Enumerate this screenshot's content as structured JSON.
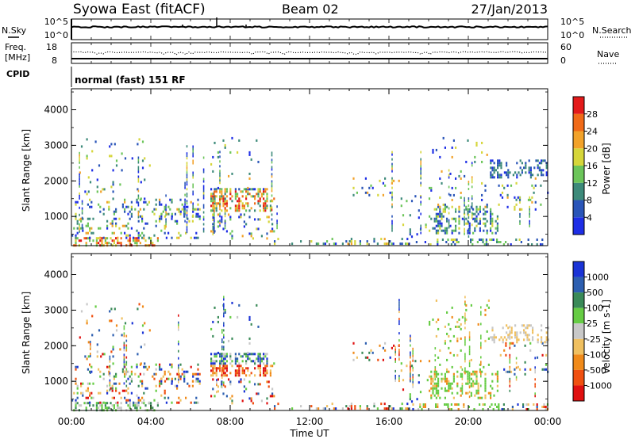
{
  "header": {
    "station": "Syowa East (fitACF)",
    "beam": "Beam 02",
    "date": "27/Jan/2013"
  },
  "nsky_panel": {
    "left_label": "N.Sky",
    "right_label": "N.Search",
    "left_top": "10^5",
    "left_bottom": "10^0",
    "right_top": "10^5",
    "right_bottom": "10^0"
  },
  "freq_panel": {
    "left_label_1": "Freq.",
    "left_label_2": "[MHz]",
    "left_top": "18",
    "left_bottom": "8",
    "right_label": "Nave",
    "right_top": "60",
    "right_bottom": "0"
  },
  "cpid": {
    "label": "CPID",
    "text": "normal (fast) 151 RF"
  },
  "chart_data": [
    {
      "type": "heatmap",
      "title": "",
      "quantity": "Power",
      "ylabel": "Slant Range [km]",
      "xlabel": "",
      "ylim": [
        180,
        4590
      ],
      "xlim_hours": [
        0,
        24
      ],
      "y_ticks": [
        "1000",
        "2000",
        "3000",
        "4000"
      ],
      "colorbar_label": "Power [dB]",
      "colorbar_ticks": [
        "4",
        "8",
        "12",
        "16",
        "20",
        "24",
        "28"
      ],
      "colorbar_colors": [
        "#1e2ee6",
        "#2a55b8",
        "#3d8a7a",
        "#6cc55a",
        "#d6d63a",
        "#f2a22a",
        "#f06a18",
        "#e31a1a"
      ]
    },
    {
      "type": "heatmap",
      "title": "",
      "quantity": "Velocity",
      "ylabel": "Slant Range [km]",
      "xlabel": "Time UT",
      "ylim": [
        180,
        4590
      ],
      "xlim_hours": [
        0,
        24
      ],
      "y_ticks": [
        "1000",
        "2000",
        "3000",
        "4000"
      ],
      "x_ticks": [
        "00:00",
        "04:00",
        "08:00",
        "12:00",
        "16:00",
        "20:00",
        "00:00"
      ],
      "colorbar_label": "Velocity [m s-1]",
      "colorbar_ticks": [
        "1000",
        "500",
        "100",
        "25",
        "-25",
        "-100",
        "-500",
        "-1000"
      ],
      "colorbar_colors": [
        "#1a33d6",
        "#2d5fb0",
        "#3a8a58",
        "#66cc44",
        "#c8c8c8",
        "#f0c060",
        "#f08a1a",
        "#f05010",
        "#e01010"
      ]
    }
  ],
  "scatter_regions": [
    {
      "t0": 0.0,
      "t1": 4.5,
      "r0": 200,
      "r1": 420,
      "density": 0.55
    },
    {
      "t0": 0.0,
      "t1": 6.5,
      "r0": 420,
      "r1": 1500,
      "density": 0.22
    },
    {
      "t0": 0.3,
      "t1": 4.0,
      "r0": 1500,
      "r1": 3200,
      "density": 0.07
    },
    {
      "t0": 4.5,
      "t1": 6.5,
      "r0": 1000,
      "r1": 1300,
      "density": 0.3
    },
    {
      "t0": 7.0,
      "t1": 10.2,
      "r0": 1150,
      "r1": 1800,
      "density": 0.55
    },
    {
      "t0": 7.0,
      "t1": 10.2,
      "r0": 400,
      "r1": 1150,
      "density": 0.12
    },
    {
      "t0": 7.0,
      "t1": 9.5,
      "r0": 1800,
      "r1": 3300,
      "density": 0.06
    },
    {
      "t0": 10.2,
      "t1": 17.0,
      "r0": 200,
      "r1": 400,
      "density": 0.35
    },
    {
      "t0": 14.0,
      "t1": 16.5,
      "r0": 1600,
      "r1": 2100,
      "density": 0.15
    },
    {
      "t0": 16.5,
      "t1": 18.0,
      "r0": 400,
      "r1": 1600,
      "density": 0.12
    },
    {
      "t0": 18.0,
      "t1": 21.5,
      "r0": 550,
      "r1": 1300,
      "density": 0.5
    },
    {
      "t0": 18.0,
      "t1": 21.0,
      "r0": 1300,
      "r1": 3300,
      "density": 0.08
    },
    {
      "t0": 21.5,
      "t1": 24.0,
      "r0": 1200,
      "r1": 2100,
      "density": 0.12
    },
    {
      "t0": 21.0,
      "t1": 24.0,
      "r0": 2100,
      "r1": 2600,
      "density": 0.45
    },
    {
      "t0": 17.0,
      "t1": 24.0,
      "r0": 200,
      "r1": 380,
      "density": 0.3
    }
  ]
}
